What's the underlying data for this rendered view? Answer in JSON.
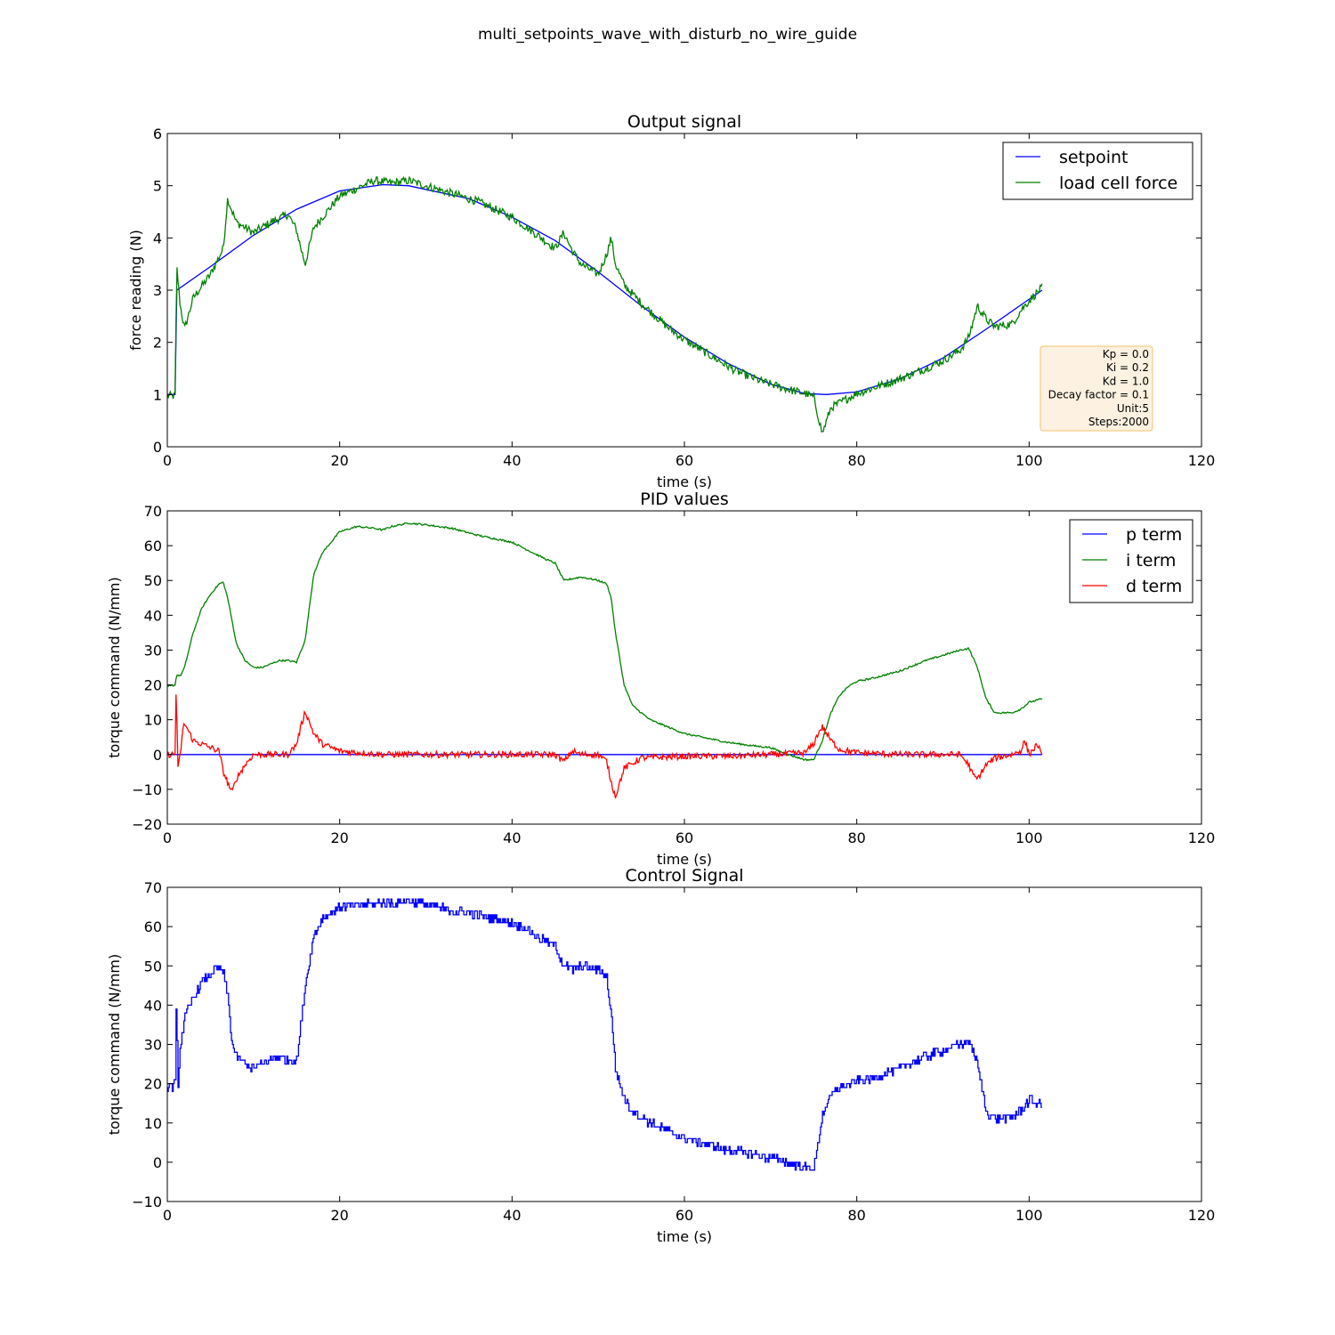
{
  "figure": {
    "title": "multi_setpoints_wave_with_disturb_no_wire_guide"
  },
  "chart_data": [
    {
      "type": "line",
      "title": "Output signal",
      "xlabel": "time (s)",
      "ylabel": "force reading (N)",
      "xlim": [
        0,
        120
      ],
      "ylim": [
        0,
        6
      ],
      "xticks": [
        "0",
        "20",
        "40",
        "60",
        "80",
        "100",
        "120"
      ],
      "yticks": [
        "0",
        "1",
        "2",
        "3",
        "4",
        "5",
        "6"
      ],
      "legend": "top-right",
      "info_box": [
        "Kp = 0.0",
        "Ki = 0.2",
        "Kd = 1.0",
        "Decay factor = 0.1",
        "Unit:5",
        "Steps:2000"
      ],
      "series": [
        {
          "name": "setpoint",
          "color": "#0000ff",
          "x": [
            0,
            0.9,
            1.1,
            5,
            10,
            15,
            20,
            25,
            28,
            35,
            40,
            45,
            50,
            55,
            60,
            65,
            70,
            74,
            76.5,
            80,
            85,
            90,
            95,
            101.5
          ],
          "y": [
            1.0,
            1.0,
            3.0,
            3.45,
            4.05,
            4.55,
            4.9,
            5.02,
            5.0,
            4.75,
            4.4,
            3.95,
            3.35,
            2.7,
            2.1,
            1.6,
            1.2,
            1.02,
            1.0,
            1.05,
            1.3,
            1.7,
            2.25,
            3.0
          ]
        },
        {
          "name": "load cell force",
          "color": "#008000",
          "x": [
            0,
            0.9,
            1.1,
            1.5,
            2,
            3,
            5,
            6.5,
            7,
            8,
            10,
            12,
            14,
            15,
            15.5,
            16,
            17,
            20,
            22,
            24,
            26,
            28,
            30,
            33,
            36,
            40,
            43,
            45,
            46,
            47,
            48,
            50,
            51,
            51.5,
            52,
            53,
            55,
            58,
            60,
            63,
            66,
            69,
            72,
            74,
            75,
            75.5,
            76,
            77,
            80,
            85,
            88,
            90,
            92,
            93,
            94,
            95,
            96,
            98,
            99,
            100,
            101.5
          ],
          "y": [
            0.98,
            0.97,
            3.45,
            2.7,
            2.25,
            2.85,
            3.3,
            3.8,
            4.75,
            4.3,
            4.1,
            4.3,
            4.45,
            4.15,
            3.8,
            3.5,
            4.2,
            4.8,
            4.95,
            5.1,
            5.05,
            5.1,
            5.0,
            4.85,
            4.7,
            4.4,
            4.05,
            3.8,
            4.1,
            3.75,
            3.5,
            3.3,
            3.7,
            4.0,
            3.5,
            3.1,
            2.75,
            2.3,
            2.05,
            1.75,
            1.45,
            1.25,
            1.1,
            1.02,
            0.95,
            0.6,
            0.25,
            0.75,
            1.02,
            1.3,
            1.5,
            1.65,
            1.85,
            2.1,
            2.7,
            2.45,
            2.3,
            2.35,
            2.6,
            2.8,
            3.05
          ]
        }
      ]
    },
    {
      "type": "line",
      "title": "PID values",
      "xlabel": "time (s)",
      "ylabel": "torque command (N/mm)",
      "xlim": [
        0,
        120
      ],
      "ylim": [
        -20,
        70
      ],
      "xticks": [
        "0",
        "20",
        "40",
        "60",
        "80",
        "100",
        "120"
      ],
      "yticks": [
        "−20",
        "−10",
        "0",
        "10",
        "20",
        "30",
        "40",
        "50",
        "60",
        "70"
      ],
      "legend": "top-right",
      "series": [
        {
          "name": "p term",
          "color": "#0000ff",
          "x": [
            0,
            101.5
          ],
          "y": [
            0,
            0
          ]
        },
        {
          "name": "i term",
          "color": "#008000",
          "x": [
            0,
            0.9,
            1.1,
            1.5,
            2,
            3,
            4,
            5,
            6,
            6.5,
            7,
            8,
            9,
            10,
            11,
            12,
            13,
            14,
            15,
            16,
            17,
            18,
            20,
            22,
            24,
            25,
            26,
            28,
            30,
            33,
            36,
            40,
            42,
            44,
            45,
            46,
            47,
            48,
            50,
            51,
            51.5,
            52,
            53,
            54,
            56,
            58,
            60,
            62,
            65,
            68,
            70,
            72,
            74,
            75,
            76,
            77,
            78,
            79,
            80,
            82,
            85,
            88,
            90,
            92,
            93,
            94,
            95,
            96,
            98,
            99,
            100,
            101.5
          ],
          "y": [
            19.5,
            20,
            23,
            22.5,
            25,
            35,
            42,
            46,
            49,
            49.5,
            45,
            32,
            27,
            25,
            25,
            26,
            27,
            27,
            26.5,
            33,
            52,
            58,
            64,
            65.5,
            65,
            64.5,
            65.5,
            66.5,
            66,
            65,
            63,
            61,
            58.5,
            56,
            55,
            50,
            50.5,
            51,
            50,
            49,
            45,
            35,
            20,
            14,
            10,
            8,
            6,
            5,
            3.5,
            2.5,
            2,
            0,
            -1.5,
            -1.5,
            4,
            12,
            17,
            19.5,
            21,
            22,
            24,
            27,
            28.5,
            30,
            30.5,
            25,
            16,
            12,
            12,
            13,
            15,
            16
          ]
        },
        {
          "name": "d term",
          "color": "#ff0000",
          "x": [
            0,
            0.9,
            1.05,
            1.2,
            1.5,
            1.8,
            2,
            3,
            5,
            6,
            6.5,
            7,
            7.5,
            8,
            9,
            10,
            12,
            14,
            15,
            15.5,
            16,
            17,
            18,
            20,
            25,
            30,
            35,
            40,
            45,
            46,
            47,
            48,
            50,
            51,
            51.5,
            52,
            53,
            55,
            60,
            65,
            70,
            74,
            75,
            75.5,
            76,
            77,
            78,
            80,
            85,
            90,
            92,
            93,
            93.5,
            94,
            95,
            96,
            98,
            99,
            99.5,
            100,
            101,
            101.5
          ],
          "y": [
            0,
            0,
            23,
            -5,
            0,
            7,
            9,
            4,
            2,
            1,
            -5,
            -8,
            -11,
            -7,
            -3,
            0,
            0,
            0,
            3,
            8,
            12.5,
            6,
            3,
            1,
            0,
            0,
            0,
            0,
            0,
            -2,
            1,
            0,
            0,
            -2,
            -8,
            -12,
            -4,
            -1,
            -0.5,
            -0.5,
            0,
            0.5,
            3,
            6,
            8,
            4,
            1.5,
            0.5,
            0,
            0,
            0,
            -3,
            -6,
            -7,
            -3,
            -1,
            0,
            1,
            4,
            0,
            3,
            -1
          ]
        }
      ]
    },
    {
      "type": "line",
      "title": "Control Signal",
      "xlabel": "time (s)",
      "ylabel": "torque command (N/mm)",
      "xlim": [
        0,
        120
      ],
      "ylim": [
        -10,
        70
      ],
      "xticks": [
        "0",
        "20",
        "40",
        "60",
        "80",
        "100",
        "120"
      ],
      "yticks": [
        "−10",
        "0",
        "10",
        "20",
        "30",
        "40",
        "50",
        "60",
        "70"
      ],
      "legend": "none",
      "series": [
        {
          "color": "#0000ff",
          "x": [
            0,
            0.9,
            1.05,
            1.2,
            1.5,
            2,
            3,
            4,
            5,
            6,
            6.5,
            7,
            7.5,
            8,
            9,
            10,
            11,
            12,
            13,
            14,
            15,
            16,
            17,
            18,
            20,
            22,
            24,
            26,
            28,
            30,
            33,
            36,
            40,
            42,
            44,
            45,
            46,
            47,
            48,
            50,
            51,
            51.5,
            52,
            53,
            54,
            56,
            58,
            60,
            62,
            65,
            68,
            70,
            72,
            74,
            75,
            76,
            77,
            78,
            80,
            82,
            85,
            88,
            90,
            92,
            93,
            94,
            95,
            96,
            98,
            99,
            100,
            101.5
          ],
          "y": [
            19.5,
            19.5,
            43,
            18,
            30,
            37,
            42,
            46,
            48,
            49.5,
            48,
            42,
            30,
            27,
            25,
            24,
            25,
            26,
            27,
            26,
            26,
            45,
            58,
            62,
            65,
            65.5,
            66,
            66,
            66.5,
            65.5,
            64,
            63,
            61,
            59,
            56,
            55,
            50,
            49,
            50,
            49,
            47,
            37,
            24,
            16,
            13,
            10,
            8,
            6,
            5,
            3,
            2,
            1,
            0,
            -1.5,
            -1.5,
            12,
            17,
            19,
            20.5,
            21.5,
            24,
            27,
            28.5,
            30,
            31,
            25,
            13,
            11,
            11.5,
            13,
            16,
            14.5
          ]
        }
      ]
    }
  ]
}
